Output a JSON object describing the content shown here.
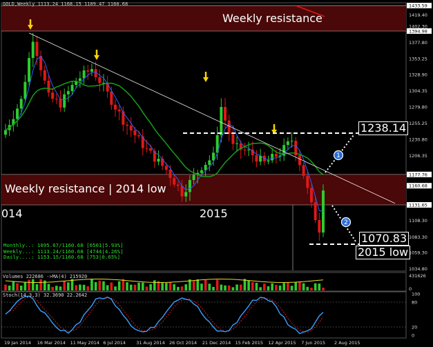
{
  "header": {
    "symbol_line": "GOLD,Weekly  1113.24 1168.15 1109.47 1160.68"
  },
  "annotations": {
    "weekly_resistance_top": "Weekly resistance",
    "weekly_resistance_low": "Weekly resistance | 2014 low",
    "year_2014": "014",
    "year_2015": "2015",
    "target_up": "1238.14",
    "target_down": "1070.83",
    "low_2015": "2015 low",
    "marker_1": "1",
    "marker_2": "2"
  },
  "price_axis": {
    "labels": [
      "1433.59",
      "1419.40",
      "1402.30",
      "1394.98",
      "1377.80",
      "1353.25",
      "1328.90",
      "1304.35",
      "1279.80",
      "1255.25",
      "1230.80",
      "1206.35",
      "1177.76",
      "1160.68",
      "1131.65",
      "1108.30",
      "1083.30",
      "1059.30",
      "1034.80"
    ],
    "highlight": [
      "1433.59",
      "1394.98",
      "1177.76",
      "1160.68",
      "1131.65"
    ]
  },
  "info_panel": {
    "monthly": "Monthly..: 1095.67/1160.68 [6501|5.93%]",
    "weekly": "Weekly...: 1113.24/1160.68 [4744|4.26%]",
    "daily": "Daily....: 1153.15/1160.68 [753|0.65%]"
  },
  "volume_panel": {
    "title": "Volumes 222686  ->MA(4) 215920",
    "axis": [
      "431626",
      "0"
    ]
  },
  "stoch_panel": {
    "title": "Stoch(14,3,3) 32.3690 22.2642",
    "axis": [
      "100",
      "80",
      "20",
      "0"
    ]
  },
  "date_axis": [
    "19 Jan 2014",
    "16 Mar 2014",
    "11 May 2014",
    "6 Jul 2014",
    "31 Aug 2014",
    "26 Oct 2014",
    "21 Dec 2014",
    "15 Feb 2015",
    "12 Apr 2015",
    "7 Jun 2015",
    "2 Aug 2015"
  ],
  "colors": {
    "bull": "#2ecc2e",
    "bear": "#e01818",
    "zone": "#4a0808",
    "ma_green": "#16a016",
    "ma_blue": "#3060ff",
    "arrow": "#ffd400",
    "marker": "#2a6cd8"
  }
}
